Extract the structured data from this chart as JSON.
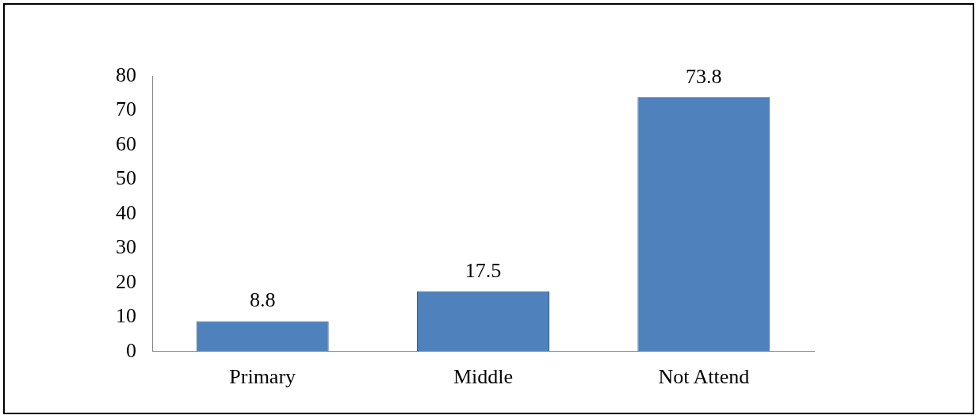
{
  "chart_data": {
    "type": "bar",
    "categories": [
      "Primary",
      "Middle",
      "Not Attend"
    ],
    "values": [
      8.8,
      17.5,
      73.8
    ],
    "color": "#4f81bd",
    "ylim": [
      0,
      80
    ],
    "yticks": [
      0,
      10,
      20,
      30,
      40,
      50,
      60,
      70,
      80
    ],
    "grid": false,
    "legend": false,
    "data_labels": true
  }
}
